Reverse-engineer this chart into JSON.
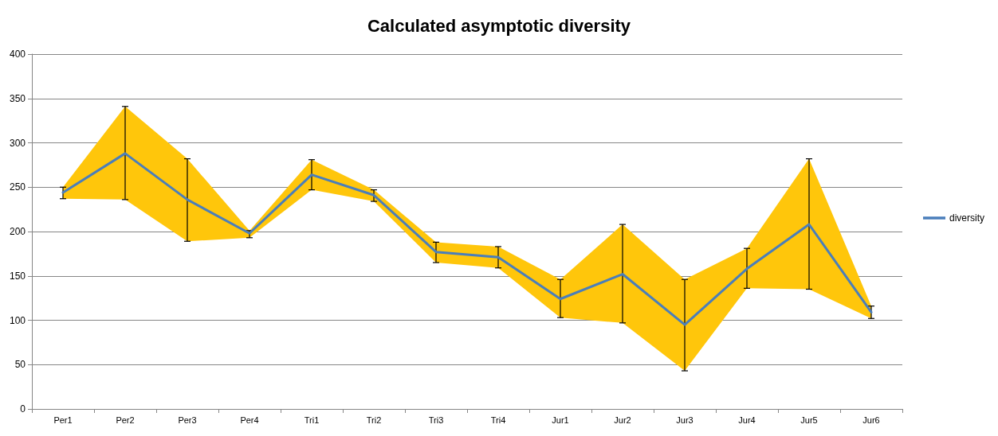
{
  "chart_data": {
    "type": "line",
    "title": "Calculated asymptotic diversity",
    "categories": [
      "Per1",
      "Per2",
      "Per3",
      "Per4",
      "Tri1",
      "Tri2",
      "Tri3",
      "Tri4",
      "Jur1",
      "Jur2",
      "Jur3",
      "Jur4",
      "Jur5",
      "Jur6"
    ],
    "series": [
      {
        "name": "diversity",
        "color": "#4a7ebb",
        "values": [
          244,
          288,
          236,
          198,
          264,
          241,
          177,
          171,
          124,
          152,
          95,
          158,
          208,
          109
        ],
        "errors": [
          [
            237,
            250
          ],
          [
            236,
            341
          ],
          [
            189,
            282
          ],
          [
            193,
            201
          ],
          [
            247,
            281
          ],
          [
            234,
            247
          ],
          [
            165,
            188
          ],
          [
            159,
            183
          ],
          [
            103,
            146
          ],
          [
            97,
            208
          ],
          [
            43,
            146
          ],
          [
            136,
            181
          ],
          [
            135,
            282
          ],
          [
            102,
            116
          ]
        ],
        "lower": [
          237,
          236,
          189,
          193,
          247,
          234,
          165,
          159,
          103,
          97,
          43,
          136,
          135,
          102
        ],
        "upper": [
          250,
          341,
          282,
          201,
          281,
          247,
          188,
          183,
          146,
          208,
          146,
          181,
          282,
          116
        ]
      }
    ],
    "ylim": [
      0,
      400
    ],
    "yticks": [
      0,
      50,
      100,
      150,
      200,
      250,
      300,
      350,
      400
    ],
    "grid": "y",
    "legend": "right",
    "marker": "none",
    "line_style": "solid"
  }
}
